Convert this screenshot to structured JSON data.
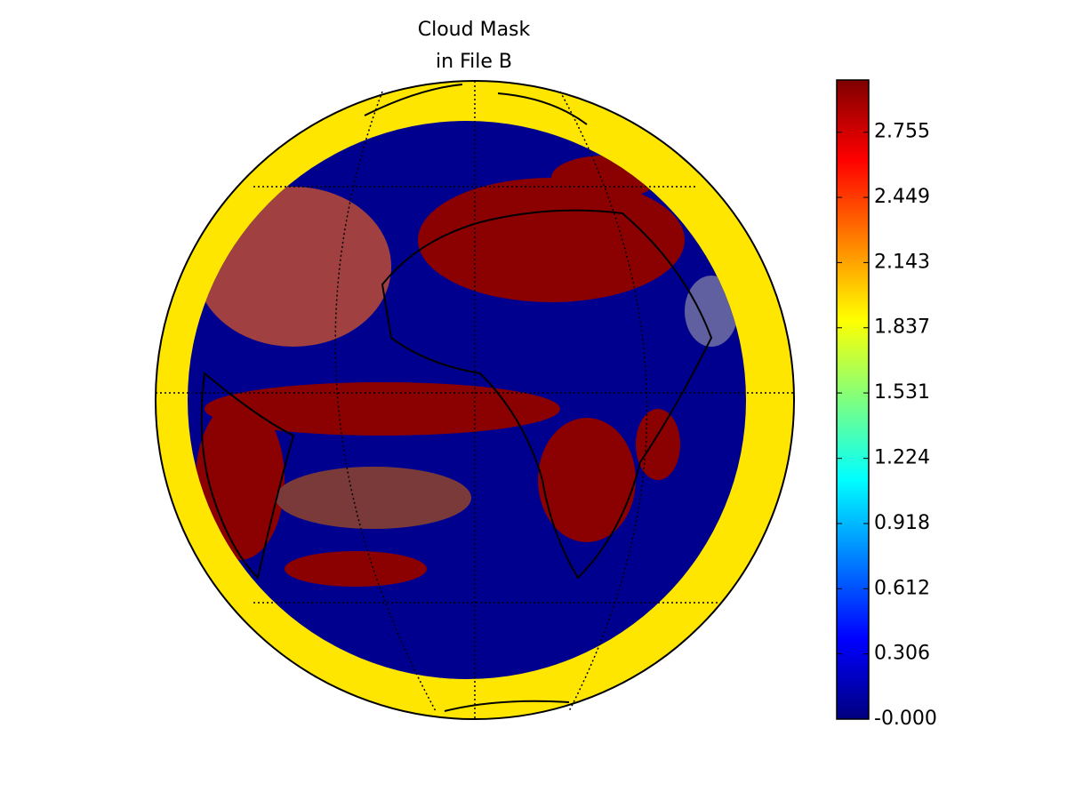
{
  "title": [
    "Cloud Mask",
    "in File B"
  ],
  "colorbar": {
    "lim": [
      0,
      3
    ],
    "colormap": "jet",
    "ticks": [
      {
        "value": 0,
        "label": "-0.000"
      },
      0.306,
      0.612,
      0.918,
      1.224,
      1.531,
      1.837,
      2.143,
      2.449,
      2.755
    ]
  }
}
